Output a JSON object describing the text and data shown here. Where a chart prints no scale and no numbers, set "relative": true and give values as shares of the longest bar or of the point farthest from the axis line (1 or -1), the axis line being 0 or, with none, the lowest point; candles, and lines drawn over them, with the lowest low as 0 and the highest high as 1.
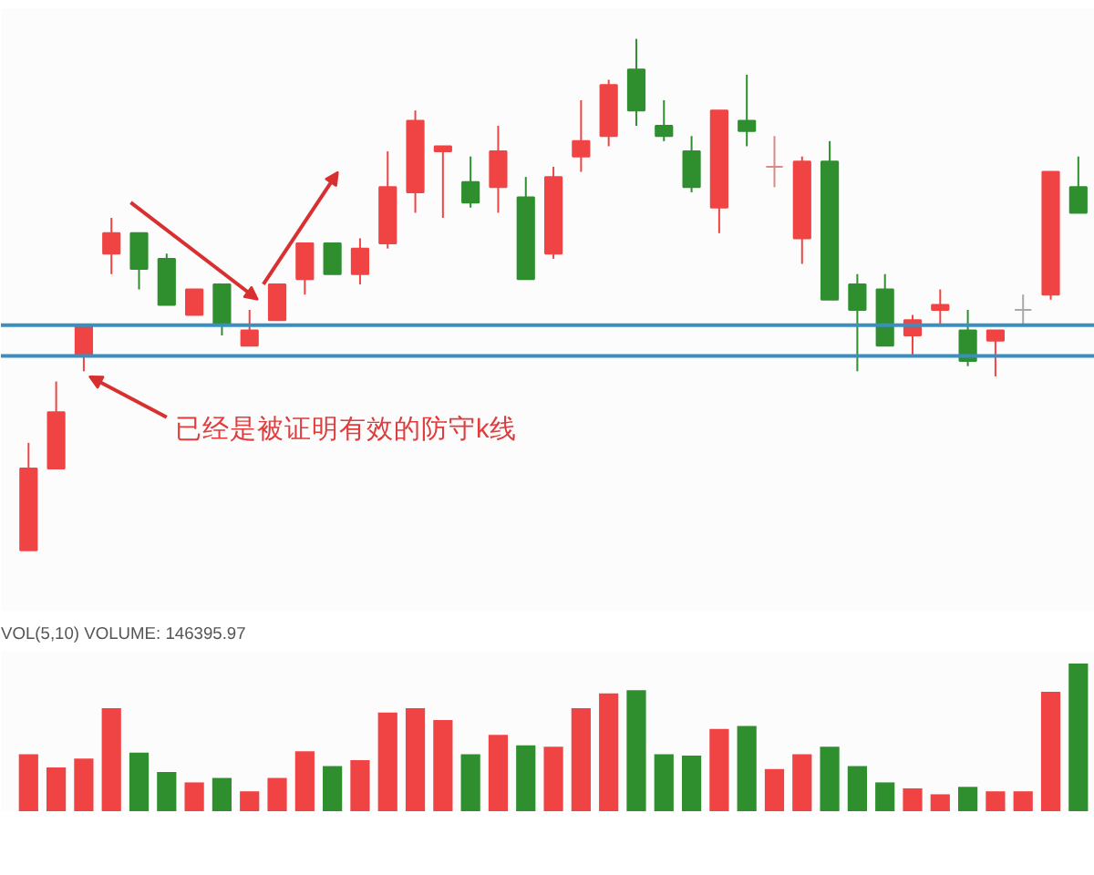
{
  "chart_data": [
    {
      "type": "candlestick",
      "relative": true,
      "categories": [
        null,
        null,
        null,
        null,
        null,
        null,
        null,
        null,
        null,
        null,
        null,
        null,
        null,
        null,
        null,
        null,
        null,
        null,
        null,
        null,
        null,
        null,
        null,
        null,
        null,
        null,
        null,
        null,
        null,
        null,
        null,
        null,
        null,
        null,
        null,
        null,
        null,
        null,
        null
      ],
      "ohlc": [
        [
          0,
          0.21,
          0,
          0.16
        ],
        [
          0.16,
          0.33,
          0.16,
          0.27
        ],
        [
          0.38,
          0.44,
          0.35,
          0.44
        ],
        [
          0.58,
          0.65,
          0.54,
          0.62
        ],
        [
          0.62,
          0.62,
          0.51,
          0.55
        ],
        [
          0.57,
          0.58,
          0.48,
          0.48
        ],
        [
          0.46,
          0.51,
          0.46,
          0.51
        ],
        [
          0.52,
          0.52,
          0.42,
          0.44
        ],
        [
          0.4,
          0.47,
          0.4,
          0.43
        ],
        [
          0.45,
          0.52,
          0.45,
          0.52
        ],
        [
          0.53,
          0.6,
          0.5,
          0.6
        ],
        [
          0.6,
          0.6,
          0.54,
          0.54
        ],
        [
          0.54,
          0.61,
          0.52,
          0.59
        ],
        [
          0.6,
          0.78,
          0.59,
          0.71
        ],
        [
          0.7,
          0.86,
          0.66,
          0.84
        ],
        [
          0.78,
          0.79,
          0.65,
          0.79
        ],
        [
          0.72,
          0.77,
          0.67,
          0.68
        ],
        [
          0.71,
          0.83,
          0.66,
          0.78
        ],
        [
          0.69,
          0.73,
          0.53,
          0.53
        ],
        [
          0.58,
          0.75,
          0.57,
          0.73
        ],
        [
          0.77,
          0.88,
          0.74,
          0.8
        ],
        [
          0.81,
          0.92,
          0.79,
          0.91
        ],
        [
          0.94,
          1,
          0.83,
          0.86
        ],
        [
          0.83,
          0.88,
          0.8,
          0.81
        ],
        [
          0.78,
          0.81,
          0.7,
          0.71
        ],
        [
          0.67,
          0.86,
          0.62,
          0.86
        ],
        [
          0.84,
          0.93,
          0.79,
          0.82
        ],
        [
          0.75,
          0.81,
          0.71,
          0.75
        ],
        [
          0.61,
          0.77,
          0.56,
          0.76
        ],
        [
          0.76,
          0.8,
          0.49,
          0.49
        ],
        [
          0.52,
          0.54,
          0.35,
          0.47
        ],
        [
          0.51,
          0.54,
          0.4,
          0.4
        ],
        [
          0.42,
          0.46,
          0.38,
          0.45
        ],
        [
          0.47,
          0.51,
          0.44,
          0.48
        ],
        [
          0.43,
          0.47,
          0.36,
          0.37
        ],
        [
          0.41,
          0.43,
          0.34,
          0.43
        ],
        [
          0.47,
          0.5,
          0.44,
          0.47
        ],
        [
          0.5,
          0.74,
          0.49,
          0.74
        ],
        [
          0.71,
          0.77,
          0.66,
          0.66
        ]
      ],
      "colors": [
        "#f04444",
        "#f04444",
        "#f04444",
        "#f04444",
        "#2f8f2f",
        "#2f8f2f",
        "#f04444",
        "#2f8f2f",
        "#f04444",
        "#f04444",
        "#f04444",
        "#2f8f2f",
        "#f04444",
        "#f04444",
        "#f04444",
        "#f04444",
        "#2f8f2f",
        "#f04444",
        "#2f8f2f",
        "#f04444",
        "#f04444",
        "#f04444",
        "#2f8f2f",
        "#2f8f2f",
        "#2f8f2f",
        "#f04444",
        "#2f8f2f",
        "#d98a8a",
        "#f04444",
        "#2f8f2f",
        "#2f8f2f",
        "#2f8f2f",
        "#f04444",
        "#f04444",
        "#2f8f2f",
        "#f04444",
        "#a8a8a8",
        "#f04444",
        "#2f8f2f"
      ],
      "ref_lines": [
        {
          "axis": "y",
          "value": 0.44,
          "color": "#3a8fc0"
        },
        {
          "axis": "y",
          "value": 0.38,
          "color": "#3a8fc0"
        }
      ],
      "annotations": [
        "已经是被证明有效的防守k线"
      ]
    },
    {
      "type": "bar",
      "relative": true,
      "title": "VOL(5,10) VOLUME: 146395.97",
      "categories": [
        null,
        null,
        null,
        null,
        null,
        null,
        null,
        null,
        null,
        null,
        null,
        null,
        null,
        null,
        null,
        null,
        null,
        null,
        null,
        null,
        null,
        null,
        null,
        null,
        null,
        null,
        null,
        null,
        null,
        null,
        null,
        null,
        null,
        null,
        null,
        null,
        null,
        null,
        null
      ],
      "values": [
        0.39,
        0.3,
        0.36,
        0.7,
        0.4,
        0.27,
        0.2,
        0.23,
        0.14,
        0.23,
        0.41,
        0.31,
        0.35,
        0.67,
        0.7,
        0.62,
        0.39,
        0.52,
        0.45,
        0.44,
        0.7,
        0.8,
        0.82,
        0.39,
        0.38,
        0.56,
        0.58,
        0.29,
        0.39,
        0.44,
        0.31,
        0.2,
        0.16,
        0.12,
        0.17,
        0.14,
        0.14,
        0.81,
        1
      ],
      "colors": [
        "#f04444",
        "#f04444",
        "#f04444",
        "#f04444",
        "#2f8f2f",
        "#2f8f2f",
        "#f04444",
        "#2f8f2f",
        "#f04444",
        "#f04444",
        "#f04444",
        "#2f8f2f",
        "#f04444",
        "#f04444",
        "#f04444",
        "#f04444",
        "#2f8f2f",
        "#f04444",
        "#2f8f2f",
        "#f04444",
        "#f04444",
        "#f04444",
        "#2f8f2f",
        "#2f8f2f",
        "#2f8f2f",
        "#f04444",
        "#2f8f2f",
        "#f04444",
        "#f04444",
        "#2f8f2f",
        "#2f8f2f",
        "#2f8f2f",
        "#f04444",
        "#f04444",
        "#2f8f2f",
        "#f04444",
        "#f04444",
        "#f04444",
        "#2f8f2f"
      ]
    }
  ]
}
